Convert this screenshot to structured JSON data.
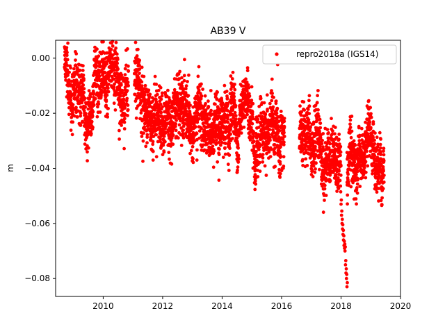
{
  "chart_data": {
    "type": "scatter",
    "title": "AB39 V",
    "xlabel": "",
    "ylabel": "m",
    "xlim": [
      2008.4,
      2020.0
    ],
    "ylim": [
      -0.0865,
      0.0065
    ],
    "x_ticks": [
      2010,
      2012,
      2014,
      2016,
      2018,
      2020
    ],
    "x_tick_labels": [
      "2010",
      "2012",
      "2014",
      "2016",
      "2018",
      "2020"
    ],
    "y_ticks": [
      0.0,
      -0.02,
      -0.04,
      -0.06,
      -0.08
    ],
    "y_tick_labels": [
      "0.00",
      "−0.02",
      "−0.04",
      "−0.06",
      "−0.08"
    ],
    "grid": false,
    "legend_position": "top-right",
    "series": [
      {
        "name": "repro2018a (IGS14)",
        "color": "#ff0000",
        "marker": "circle",
        "trend": [
          [
            2008.7,
            -0.006
          ],
          [
            2009.0,
            -0.01
          ],
          [
            2009.5,
            -0.012
          ],
          [
            2010.0,
            -0.011
          ],
          [
            2010.5,
            -0.01
          ],
          [
            2011.0,
            -0.014
          ],
          [
            2011.5,
            -0.017
          ],
          [
            2012.0,
            -0.02
          ],
          [
            2012.5,
            -0.018
          ],
          [
            2013.0,
            -0.024
          ],
          [
            2013.5,
            -0.022
          ],
          [
            2014.0,
            -0.02
          ],
          [
            2014.5,
            -0.025
          ],
          [
            2015.0,
            -0.026
          ],
          [
            2015.5,
            -0.028
          ],
          [
            2016.0,
            -0.03
          ],
          [
            2016.5,
            -0.026
          ],
          [
            2017.0,
            -0.034
          ],
          [
            2017.5,
            -0.035
          ],
          [
            2018.0,
            -0.032
          ],
          [
            2018.5,
            -0.036
          ],
          [
            2019.0,
            -0.038
          ],
          [
            2019.5,
            -0.039
          ]
        ],
        "scatter_std": 0.005,
        "x_range": [
          2008.7,
          2019.45
        ],
        "gaps": [
          [
            2010.85,
            2011.05
          ],
          [
            2016.1,
            2016.6
          ]
        ],
        "outlier_cluster": {
          "x_range": [
            2018.0,
            2018.2
          ],
          "y_values": [
            -0.053,
            -0.057,
            -0.06,
            -0.062,
            -0.064,
            -0.066,
            -0.068,
            -0.069,
            -0.07,
            -0.075,
            -0.078,
            -0.08,
            -0.083
          ]
        }
      }
    ]
  }
}
